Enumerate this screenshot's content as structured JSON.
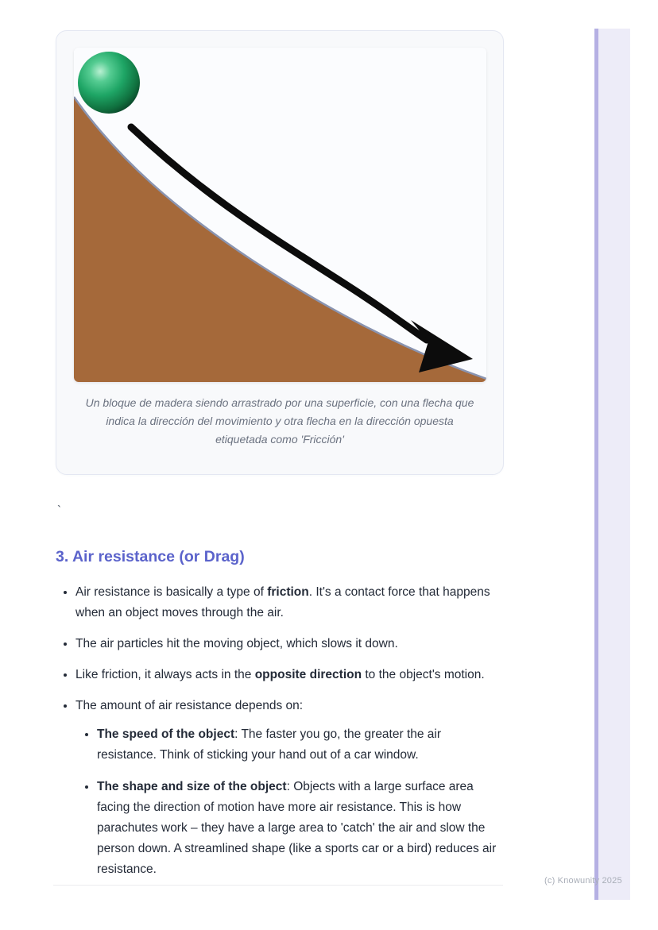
{
  "page": {
    "footer": "(c) Knowunity 2025",
    "background": "#ffffff",
    "next_page_edge_fill": "#edecf8",
    "next_page_edge_stripe": "#b5b0e3"
  },
  "figure": {
    "caption": "Un bloque de madera siendo arrastrado por una superficie, con una flecha que indica la dirección del movimiento y otra flecha en la dirección opuesta etiquetada como 'Fricción'",
    "colors": {
      "card_background": "#f8f9fb",
      "card_border": "#e4e7f2",
      "image_background": "#fbfcfe",
      "hill_brown": "#a5693a",
      "hill_edge": "#8a94b0",
      "ball_green": "#1ea565",
      "ball_highlight": "#b9f0d2",
      "ball_dark": "#0a4227",
      "arrow_black": "#0c0c0c"
    }
  },
  "note": {
    "text": "`"
  },
  "section": {
    "heading": "3. Air resistance (or Drag)",
    "heading_color": "#5b63cb",
    "bullets": [
      {
        "runs": [
          {
            "t": "Air resistance is basically a type of "
          },
          {
            "t": "friction",
            "b": true
          },
          {
            "t": ". It's a contact force that happens when an object moves through the air."
          }
        ]
      },
      {
        "runs": [
          {
            "t": "The air particles hit the moving object, which slows it down."
          }
        ]
      },
      {
        "runs": [
          {
            "t": "Like friction, it always acts in the "
          },
          {
            "t": "opposite direction",
            "b": true
          },
          {
            "t": " to the object's motion."
          }
        ]
      },
      {
        "runs": [
          {
            "t": "The amount of air resistance depends on:"
          }
        ],
        "children": [
          {
            "runs": [
              {
                "t": "The speed of the object",
                "b": true
              },
              {
                "t": ": The faster you go, the greater the air resistance. Think of sticking your hand out of a car window."
              }
            ]
          },
          {
            "runs": [
              {
                "t": "The shape and size of the object",
                "b": true
              },
              {
                "t": ": Objects with a large surface area facing the direction of motion have more air resistance. This is how parachutes work – they have a large area to 'catch' the air and slow the person down. A streamlined shape (like a sports car or a bird) reduces air resistance."
              }
            ]
          }
        ]
      }
    ]
  }
}
